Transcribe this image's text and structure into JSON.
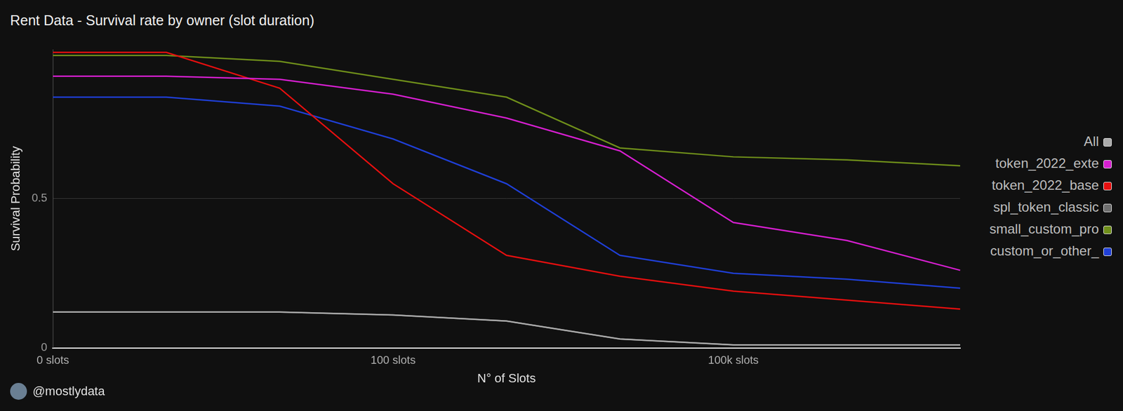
{
  "chart_data": {
    "type": "line",
    "title": "Rent Data - Survival rate by owner (slot duration)",
    "x_label": "N° of Slots",
    "y_label": "Survival Probability",
    "annotation": "@mostlydata",
    "categories": [
      "0 slots",
      null,
      null,
      "100 slots",
      null,
      null,
      "100k slots",
      null,
      null
    ],
    "series": [
      {
        "name": "All",
        "color": "#aaaaaa",
        "values": [
          0.12,
          0.12,
          0.12,
          0.11,
          0.09,
          0.03,
          0.01,
          0.01,
          0.01
        ]
      },
      {
        "name": "token_2022_exte",
        "color": "#d61fd0",
        "values": [
          0.91,
          0.91,
          0.9,
          0.85,
          0.77,
          0.66,
          0.42,
          0.36,
          0.26
        ]
      },
      {
        "name": "token_2022_base",
        "color": "#e60f0f",
        "values": [
          0.99,
          0.99,
          0.87,
          0.55,
          0.31,
          0.24,
          0.19,
          0.16,
          0.13
        ]
      },
      {
        "name": "spl_token_classic",
        "color": "#6e6e6e",
        "values": [
          0.12,
          0.12,
          0.12,
          0.11,
          0.09,
          0.03,
          0.01,
          0.01,
          0.01
        ]
      },
      {
        "name": "small_custom_pro",
        "color": "#6f8f1a",
        "values": [
          0.98,
          0.98,
          0.96,
          0.9,
          0.84,
          0.67,
          0.64,
          0.63,
          0.61
        ]
      },
      {
        "name": "custom_or_other_",
        "color": "#1f3fd6",
        "values": [
          0.84,
          0.84,
          0.81,
          0.7,
          0.55,
          0.31,
          0.25,
          0.23,
          0.2
        ]
      }
    ],
    "ylim": [
      0,
      1
    ],
    "yticks": [
      0,
      0.5
    ],
    "grid": true,
    "legend": "right"
  }
}
